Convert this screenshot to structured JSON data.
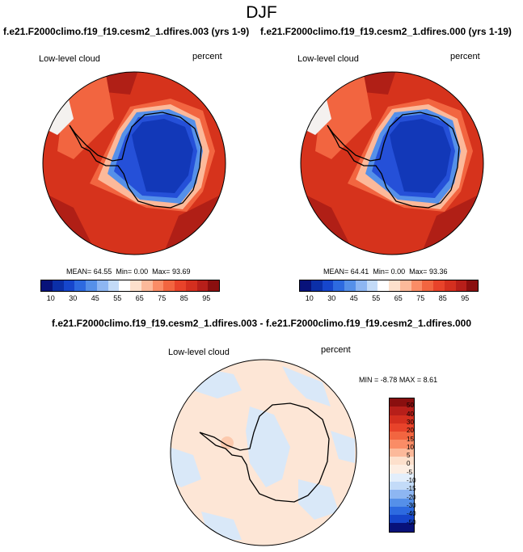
{
  "page": {
    "title": "DJF",
    "diff_title": "f.e21.F2000climo.f19_f19.cesm2_1.dfires.003 - f.e21.F2000climo.f19_f19.cesm2_1.dfires.000"
  },
  "panels": [
    {
      "case_title": "f.e21.F2000climo.f19_f19.cesm2_1.dfires.003 (yrs 1-9)",
      "variable": "Low-level cloud",
      "units": "percent",
      "mean_label": "MEAN=",
      "mean": "64.55",
      "min_label": "Min=",
      "min": "0.00",
      "max_label": "Max=",
      "max": "93.69"
    },
    {
      "case_title": "f.e21.F2000climo.f19_f19.cesm2_1.dfires.000 (yrs 1-19)",
      "variable": "Low-level cloud",
      "units": "percent",
      "mean_label": "MEAN=",
      "mean": "64.41",
      "min_label": "Min=",
      "min": "0.00",
      "max_label": "Max=",
      "max": "93.36"
    }
  ],
  "diff_panel": {
    "variable": "Low-level cloud",
    "units": "percent",
    "min_label": "MIN =",
    "min": "-8.78",
    "max_label": "MAX =",
    "max": "8.61"
  },
  "colorbar_abs": {
    "ticks": [
      "10",
      "30",
      "45",
      "55",
      "65",
      "75",
      "85",
      "95"
    ],
    "colors": [
      "#08127a",
      "#0b2fa8",
      "#1646cc",
      "#2d6ae0",
      "#5590e9",
      "#8db6f2",
      "#c3dbf8",
      "#ffffff",
      "#fde0cc",
      "#fcb99a",
      "#fa8c66",
      "#f26540",
      "#e8432a",
      "#d42f1f",
      "#b71f1a",
      "#8a0f0f"
    ]
  },
  "colorbar_diff": {
    "ticks": [
      "50",
      "40",
      "30",
      "20",
      "15",
      "10",
      "5",
      "0",
      "-5",
      "-10",
      "-15",
      "-20",
      "-30",
      "-40",
      "-50"
    ],
    "colors": [
      "#8a0f0f",
      "#b71f1a",
      "#d42f1f",
      "#e8432a",
      "#f26540",
      "#fa8c66",
      "#fcb99a",
      "#fde0cc",
      "#fdeee3",
      "#e3eefb",
      "#c3dbf8",
      "#8db6f2",
      "#5590e9",
      "#2d6ae0",
      "#1646cc",
      "#08127a"
    ]
  },
  "map_colors": {
    "ocean_outer": "#d6331c",
    "ocean_dark": "#b01f16",
    "ocean_mid": "#f26540",
    "transition": "#fcb99a",
    "edge_white": "#f4f1ef",
    "ice_light": "#5590e9",
    "ice_mid": "#2550d8",
    "ice_dark": "#1238b8",
    "diff_bg": "#fde6d6",
    "diff_blue": "#d9e8f8"
  }
}
